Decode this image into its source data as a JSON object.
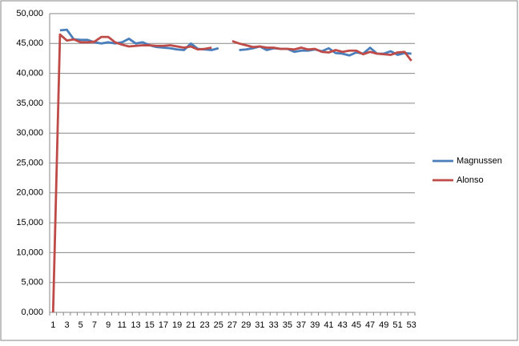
{
  "chart_data": {
    "type": "line",
    "categories": [
      1,
      null,
      3,
      null,
      5,
      null,
      7,
      null,
      9,
      null,
      11,
      null,
      13,
      null,
      15,
      null,
      17,
      null,
      19,
      null,
      21,
      null,
      23,
      null,
      25,
      null,
      27,
      null,
      29,
      null,
      31,
      null,
      33,
      null,
      35,
      null,
      37,
      null,
      39,
      null,
      41,
      null,
      43,
      null,
      45,
      null,
      47,
      null,
      49,
      null,
      51,
      null,
      53
    ],
    "series": [
      {
        "name": "Magnussen",
        "color": "#4a7ebb",
        "values": [
          null,
          47200,
          47300,
          45700,
          45600,
          45600,
          45200,
          45000,
          45200,
          45000,
          45200,
          45800,
          45000,
          45200,
          44700,
          44400,
          44300,
          44200,
          44000,
          43900,
          45000,
          44100,
          44000,
          43900,
          44200,
          null,
          null,
          43900,
          44000,
          44200,
          44500,
          43900,
          44200,
          44100,
          44100,
          43600,
          43800,
          43800,
          44000,
          43700,
          44200,
          43400,
          43300,
          43000,
          43500,
          43300,
          44300,
          43300,
          43300,
          43700,
          43100,
          43400,
          43300
        ]
      },
      {
        "name": "Alonso",
        "color": "#be4b48",
        "values": [
          0,
          46500,
          45500,
          45700,
          45200,
          45200,
          45300,
          46100,
          46100,
          45200,
          44800,
          44500,
          44600,
          44700,
          44700,
          44600,
          44600,
          44700,
          44500,
          44300,
          44500,
          44000,
          44100,
          44300,
          null,
          null,
          45400,
          45000,
          44700,
          44400,
          44500,
          44300,
          44300,
          44100,
          44100,
          44000,
          44300,
          44000,
          44100,
          43600,
          43500,
          43900,
          43600,
          43800,
          43800,
          43200,
          43600,
          43300,
          43200,
          43100,
          43500,
          43600,
          42100
        ]
      }
    ],
    "ylim": [
      0,
      50000
    ],
    "yticks": [
      {
        "value": 0,
        "label": "0,000"
      },
      {
        "value": 5000,
        "label": "5,000"
      },
      {
        "value": 10000,
        "label": "10,000"
      },
      {
        "value": 15000,
        "label": "15,000"
      },
      {
        "value": 20000,
        "label": "20,000"
      },
      {
        "value": 25000,
        "label": "25,000"
      },
      {
        "value": 30000,
        "label": "30,000"
      },
      {
        "value": 35000,
        "label": "35,000"
      },
      {
        "value": 40000,
        "label": "40,000"
      },
      {
        "value": 45000,
        "label": "45,000"
      },
      {
        "value": 50000,
        "label": "50,000"
      }
    ],
    "grid": true,
    "legend": "right"
  }
}
